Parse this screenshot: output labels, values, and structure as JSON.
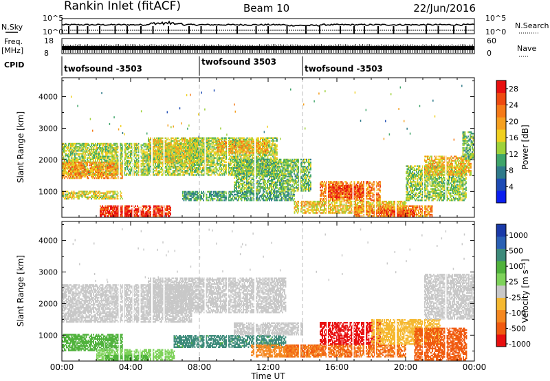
{
  "header": {
    "station": "Rankin Inlet (fitACF)",
    "beam": "Beam 10",
    "date": "22/Jun/2016"
  },
  "info_panels": {
    "nsky_label": "N.Sky",
    "nsky_ticks": [
      "10^5",
      "10^0"
    ],
    "nsearch_label": "N.Search",
    "nsearch_ticks": [
      "10^5",
      "10^0"
    ],
    "freq_label_line1": "Freq.",
    "freq_label_line2": "[MHz]",
    "freq_ticks": [
      "18",
      "8"
    ],
    "nave_label": "Nave",
    "nave_ticks": [
      "60",
      "0"
    ],
    "cpid_label": "CPID",
    "cpid_segments": [
      {
        "start_hour": 0,
        "end_hour": 8,
        "label": "twofsound -3503"
      },
      {
        "start_hour": 8,
        "end_hour": 14,
        "label": "twofsound 3503"
      },
      {
        "start_hour": 14,
        "end_hour": 24,
        "label": "twofsound -3503"
      }
    ]
  },
  "chart_data": [
    {
      "type": "heatmap",
      "panel": "power",
      "ylabel": "Slant Range [km]",
      "xlabel": "",
      "x_ticks": [
        "00:00",
        "04:00",
        "08:00",
        "12:00",
        "16:00",
        "20:00",
        "00:00"
      ],
      "xlim_hours": [
        0,
        24
      ],
      "y_ticks": [
        1000,
        2000,
        3000,
        4000
      ],
      "ylim": [
        180,
        4600
      ],
      "colorbar": {
        "label": "Power [dB]",
        "ticks": [
          "4",
          "8",
          "12",
          "16",
          "20",
          "24",
          "28"
        ],
        "range": [
          0,
          30
        ],
        "colors": [
          "#0a1ef0",
          "#1d4bb4",
          "#2f7a8a",
          "#3fa56a",
          "#9ed23a",
          "#f0d020",
          "#f5a020",
          "#f57a18",
          "#ee4a10",
          "#e81010"
        ]
      },
      "regions": [
        {
          "t0": 0.0,
          "t1": 7.5,
          "r0": 1500,
          "r1": 2500,
          "value": 14
        },
        {
          "t0": 0.0,
          "t1": 3.5,
          "r0": 1400,
          "r1": 1900,
          "value": 20
        },
        {
          "t0": 0.0,
          "t1": 3.5,
          "r0": 750,
          "r1": 1000,
          "value": 16
        },
        {
          "t0": 2.2,
          "t1": 6.3,
          "r0": 200,
          "r1": 560,
          "value": 27
        },
        {
          "t0": 3.0,
          "t1": 5.5,
          "r0": 200,
          "r1": 360,
          "value": 29
        },
        {
          "t0": 5.0,
          "t1": 8.5,
          "r0": 1900,
          "r1": 2700,
          "value": 16
        },
        {
          "t0": 7.5,
          "t1": 12.5,
          "r0": 1500,
          "r1": 2700,
          "value": 14
        },
        {
          "t0": 9.0,
          "t1": 12.0,
          "r0": 2200,
          "r1": 2600,
          "value": 19
        },
        {
          "t0": 7.0,
          "t1": 13.5,
          "r0": 700,
          "r1": 1000,
          "value": 10
        },
        {
          "t0": 10.0,
          "t1": 14.5,
          "r0": 1000,
          "r1": 2000,
          "value": 12
        },
        {
          "t0": 13.5,
          "t1": 20.0,
          "r0": 300,
          "r1": 700,
          "value": 17
        },
        {
          "t0": 15.0,
          "t1": 18.5,
          "r0": 700,
          "r1": 1300,
          "value": 22
        },
        {
          "t0": 15.5,
          "t1": 17.5,
          "r0": 800,
          "r1": 1200,
          "value": 26
        },
        {
          "t0": 17.0,
          "t1": 21.5,
          "r0": 200,
          "r1": 550,
          "value": 21
        },
        {
          "t0": 18.5,
          "t1": 20.5,
          "r0": 200,
          "r1": 400,
          "value": 26
        },
        {
          "t0": 20.0,
          "t1": 23.5,
          "r0": 700,
          "r1": 1800,
          "value": 13
        },
        {
          "t0": 21.0,
          "t1": 23.8,
          "r0": 1500,
          "r1": 2100,
          "value": 18
        },
        {
          "t0": 23.3,
          "t1": 24.0,
          "r0": 2000,
          "r1": 2900,
          "value": 12
        }
      ]
    },
    {
      "type": "heatmap",
      "panel": "velocity",
      "ylabel": "Slant Range [km]",
      "xlabel": "Time UT",
      "x_ticks": [
        "00:00",
        "04:00",
        "08:00",
        "12:00",
        "16:00",
        "20:00",
        "00:00"
      ],
      "xlim_hours": [
        0,
        24
      ],
      "y_ticks": [
        1000,
        2000,
        3000,
        4000
      ],
      "ylim": [
        180,
        4600
      ],
      "colorbar": {
        "label": "Velocity [m s⁻¹]",
        "ticks": [
          "1000",
          "500",
          "100",
          "25",
          "-25",
          "-100",
          "-500",
          "-1000"
        ],
        "colors": [
          "#1a3aa8",
          "#2a60b4",
          "#3c8a7a",
          "#50b23c",
          "#7ed25a",
          "#c8c8c8",
          "#f5b830",
          "#f58820",
          "#f05a10",
          "#e81010"
        ]
      },
      "regions": [
        {
          "t0": 0.0,
          "t1": 7.5,
          "r0": 1400,
          "r1": 2600,
          "value": 0
        },
        {
          "t0": 5.0,
          "t1": 13.0,
          "r0": 1700,
          "r1": 2800,
          "value": 0
        },
        {
          "t0": 0.0,
          "t1": 3.5,
          "r0": 500,
          "r1": 1000,
          "value": 150
        },
        {
          "t0": 2.0,
          "t1": 6.5,
          "r0": 200,
          "r1": 560,
          "value": 60
        },
        {
          "t0": 2.5,
          "t1": 5.0,
          "r0": 200,
          "r1": 350,
          "value": 150
        },
        {
          "t0": 6.5,
          "t1": 13.0,
          "r0": 600,
          "r1": 1000,
          "value": 300
        },
        {
          "t0": 10.0,
          "t1": 14.0,
          "r0": 1000,
          "r1": 1400,
          "value": 0
        },
        {
          "t0": 11.0,
          "t1": 15.0,
          "r0": 300,
          "r1": 700,
          "value": -200
        },
        {
          "t0": 13.0,
          "t1": 20.0,
          "r0": 300,
          "r1": 700,
          "value": -250
        },
        {
          "t0": 15.0,
          "t1": 18.5,
          "r0": 700,
          "r1": 1400,
          "value": -800
        },
        {
          "t0": 18.0,
          "t1": 22.0,
          "r0": 700,
          "r1": 1500,
          "value": -60
        },
        {
          "t0": 20.5,
          "t1": 23.5,
          "r0": 200,
          "r1": 1200,
          "value": -300
        },
        {
          "t0": 21.0,
          "t1": 24.0,
          "r0": 1500,
          "r1": 2900,
          "value": 0
        }
      ]
    }
  ]
}
